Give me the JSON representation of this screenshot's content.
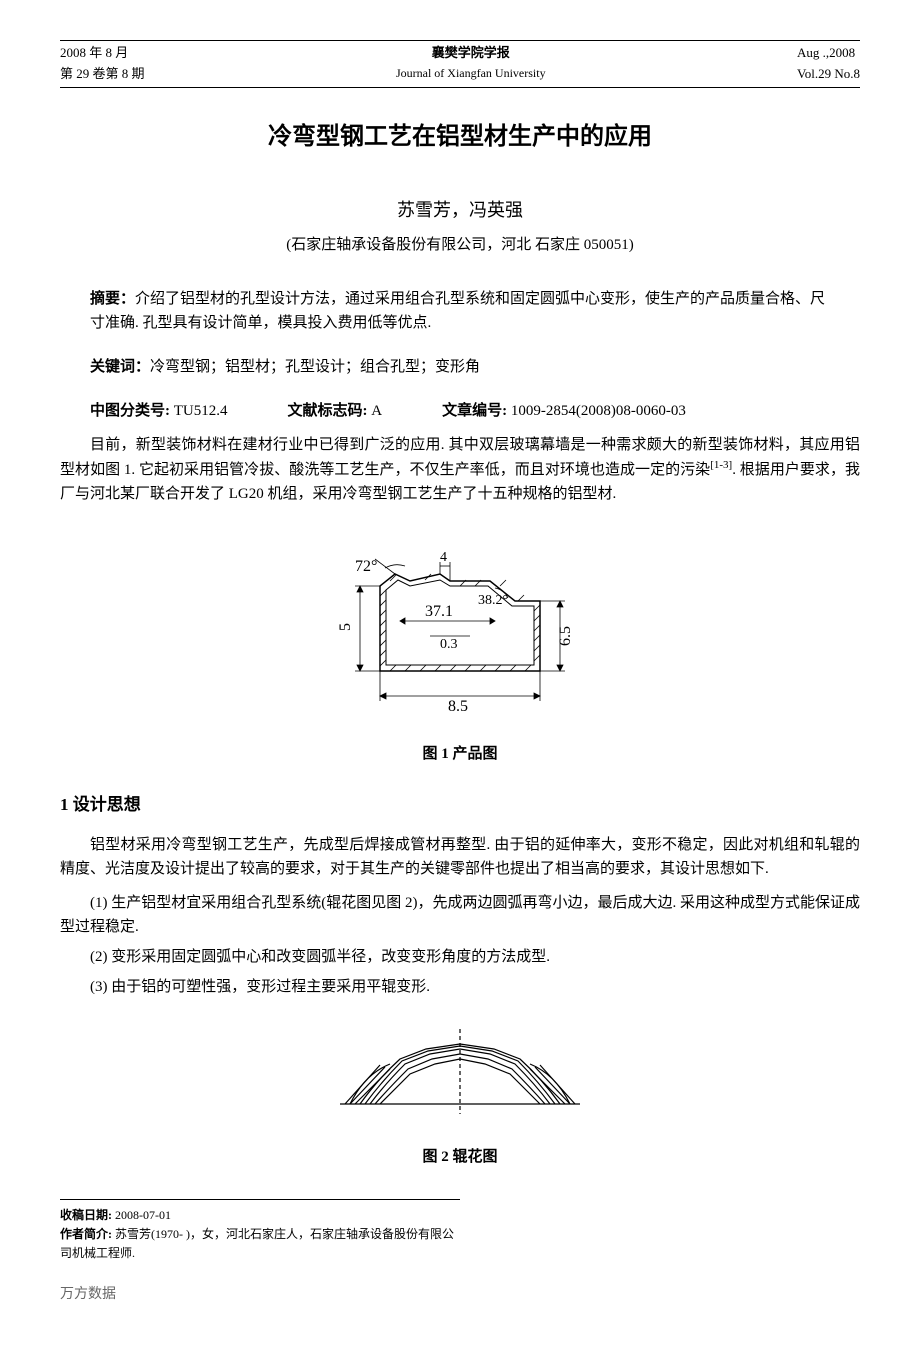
{
  "header": {
    "left_line1": "2008 年 8 月",
    "left_line2": "第 29 卷第 8 期",
    "center_cn": "襄樊学院学报",
    "center_en": "Journal of Xiangfan University",
    "right_line1": "Aug .,2008",
    "right_line2": "Vol.29 No.8"
  },
  "title": "冷弯型钢工艺在铝型材生产中的应用",
  "authors": "苏雪芳，冯英强",
  "affiliation": "(石家庄轴承设备股份有限公司，河北 石家庄 050051)",
  "abstract": {
    "label": "摘要：",
    "text": "介绍了铝型材的孔型设计方法，通过采用组合孔型系统和固定圆弧中心变形，使生产的产品质量合格、尺寸准确. 孔型具有设计简单，模具投入费用低等优点."
  },
  "keywords": {
    "label": "关键词：",
    "text": "冷弯型钢；铝型材；孔型设计；组合孔型；变形角"
  },
  "classification": {
    "clc_label": "中图分类号:",
    "clc_value": "TU512.4",
    "doc_code_label": "文献标志码:",
    "doc_code_value": "A",
    "article_id_label": "文章编号:",
    "article_id_value": "1009-2854(2008)08-0060-03"
  },
  "intro_para": "目前，新型装饰材料在建材行业中已得到广泛的应用. 其中双层玻璃幕墙是一种需求颇大的新型装饰材料，其应用铝型材如图 1. 它起初采用铝管冷拔、酸洗等工艺生产，不仅生产率低，而且对环境也造成一定的污染[1-3]. 根据用户要求，我厂与河北某厂联合开发了 LG20 机组，采用冷弯型钢工艺生产了十五种规格的铝型材.",
  "figure1": {
    "caption": "图 1  产品图",
    "dimensions": {
      "angle1": "72°",
      "angle2": "38.2°",
      "width_top": "4",
      "width_inner": "37.1",
      "height_left": "5",
      "height_right": "6.5",
      "thickness": "0.3",
      "width_bottom": "8.5"
    },
    "styling": {
      "stroke": "#000000",
      "stroke_width": 1.5,
      "fill": "none",
      "hatch_angle": 45,
      "font_size": 14
    }
  },
  "section1": {
    "heading": "1  设计思想",
    "para1": "铝型材采用冷弯型钢工艺生产，先成型后焊接成管材再整型. 由于铝的延伸率大，变形不稳定，因此对机组和轧辊的精度、光洁度及设计提出了较高的要求，对于其生产的关键零部件也提出了相当高的要求，其设计思想如下.",
    "item1": "(1) 生产铝型材宜采用组合孔型系统(辊花图见图 2)，先成两边圆弧再弯小边，最后成大边. 采用这种成型方式能保证成型过程稳定.",
    "item2": "(2) 变形采用固定圆弧中心和改变圆弧半径，改变变形角度的方法成型.",
    "item3": "(3) 由于铝的可塑性强，变形过程主要采用平辊变形."
  },
  "figure2": {
    "caption": "图 2  辊花图",
    "styling": {
      "stroke": "#000000",
      "stroke_width": 1.2,
      "fill": "none"
    }
  },
  "footer": {
    "received_label": "收稿日期:",
    "received_value": "2008-07-01",
    "author_bio_label": "作者简介:",
    "author_bio_value": "苏雪芳(1970- )，女，河北石家庄人，石家庄轴承设备股份有限公司机械工程师."
  },
  "watermark": "万方数据"
}
